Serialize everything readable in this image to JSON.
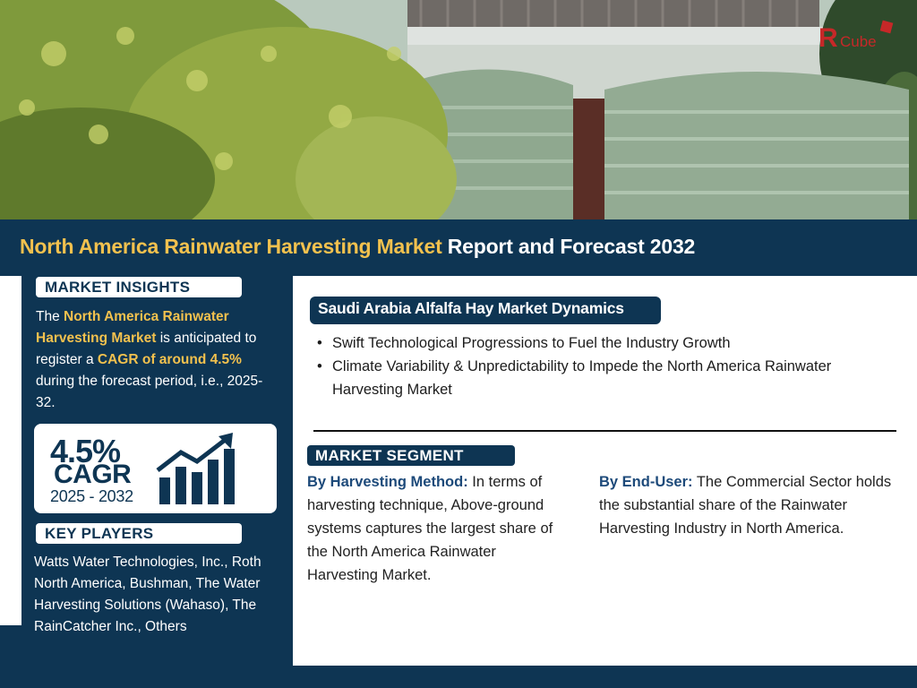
{
  "brand": {
    "logo_text": "Cube",
    "logo_mark": "R",
    "accent_red": "#c62828"
  },
  "colors": {
    "navy": "#0e3553",
    "highlight": "#f2c14e",
    "white": "#ffffff"
  },
  "header": {
    "title_highlight": "North America Rainwater Harvesting Market",
    "title_rest": " Report and Forecast 2032"
  },
  "insights": {
    "label": "MARKET INSIGHTS",
    "text_1": "The ",
    "market_name": "North America Rainwater Harvesting Market",
    "text_2": " is anticipated to register a ",
    "cagr_phrase": "CAGR of around 4.5%",
    "text_3": " during the forecast period, i.e., 2025-32."
  },
  "cagr": {
    "value": "4.5%",
    "label": "CAGR",
    "period": "2025 - 2032",
    "icon": "growth-bar-chart-icon"
  },
  "players": {
    "label": "KEY PLAYERS",
    "text": "Watts Water Technologies, Inc., Roth North America, Bushman, The Water Harvesting Solutions (Wahaso), The RainCatcher Inc., Others"
  },
  "dynamics": {
    "title": "Saudi Arabia Alfalfa Hay Market Dynamics",
    "items": [
      "Swift Technological Progressions to Fuel the Industry Growth",
      "Climate Variability & Unpredictability to Impede the North America Rainwater Harvesting Market"
    ]
  },
  "segment": {
    "label": "MARKET SEGMENT",
    "method_label": "By Harvesting Method:",
    "method_text": " In terms of harvesting technique, Above-ground systems captures the largest share of the North America Rainwater Harvesting Market.",
    "enduser_label": "By End-User:",
    "enduser_text": " The Commercial Sector holds the substantial share of the Rainwater Harvesting Industry in North America."
  }
}
